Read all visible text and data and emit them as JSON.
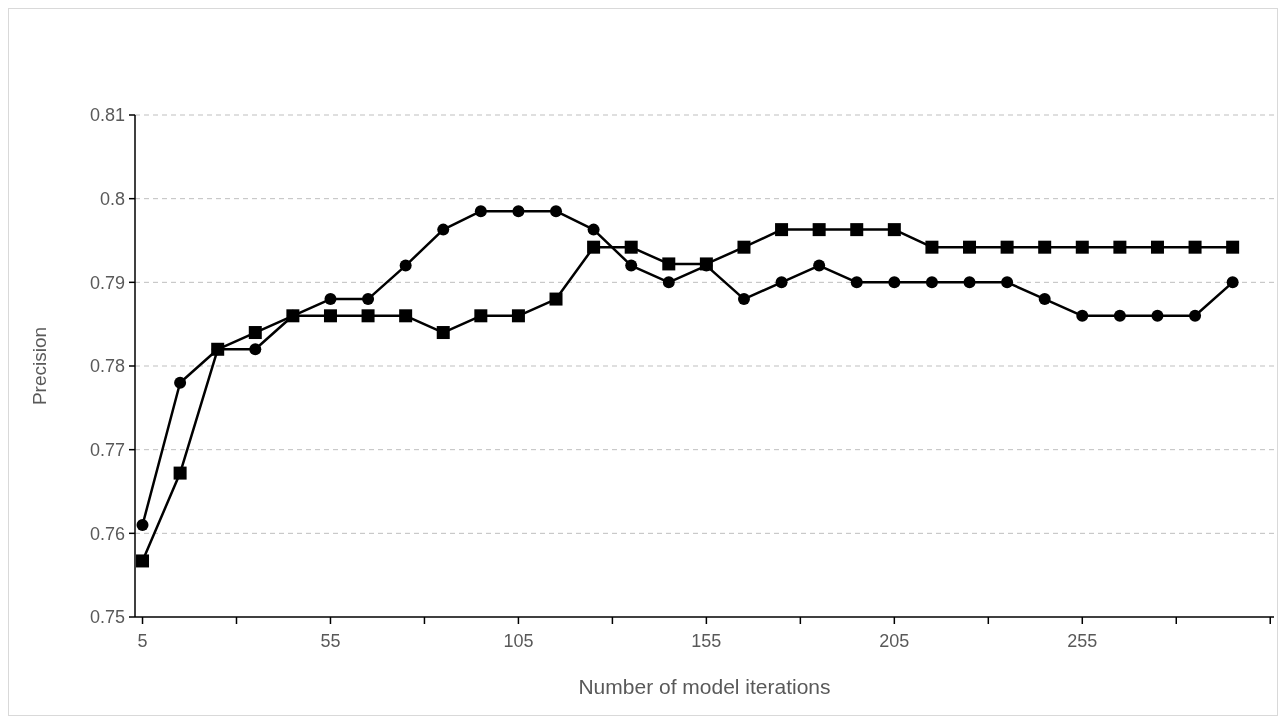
{
  "chart_data": {
    "type": "line",
    "xlabel": "Number of model iterations",
    "ylabel": "Precision",
    "x": [
      5,
      15,
      25,
      35,
      45,
      55,
      65,
      75,
      85,
      95,
      105,
      115,
      125,
      135,
      145,
      155,
      165,
      175,
      185,
      195,
      205,
      215,
      225,
      235,
      245,
      255,
      265,
      275,
      285,
      295
    ],
    "xlim": [
      3,
      306
    ],
    "xticks": [
      5,
      {
        "value": 30,
        "label": null
      },
      55,
      {
        "value": 80,
        "label": null
      },
      105,
      {
        "value": 130,
        "label": null
      },
      155,
      {
        "value": 180,
        "label": null
      },
      205,
      {
        "value": 230,
        "label": null
      },
      255,
      {
        "value": 280,
        "label": null
      },
      {
        "value": 305,
        "label": null
      }
    ],
    "ylim": [
      0.75,
      0.81
    ],
    "yticks": [
      0.75,
      0.76,
      0.77,
      0.78,
      0.79,
      {
        "value": 0.8,
        "label": "0.8"
      },
      0.81
    ],
    "grid": "y",
    "line_style": "solid",
    "series": [
      {
        "color": "#000000",
        "marker": "circle",
        "values": [
          0.761,
          0.778,
          0.782,
          0.782,
          0.786,
          0.788,
          0.788,
          0.792,
          0.7963,
          0.7985,
          0.7985,
          0.7985,
          0.7963,
          0.792,
          0.79,
          0.792,
          0.788,
          0.79,
          0.792,
          0.79,
          0.79,
          0.79,
          0.79,
          0.79,
          0.788,
          0.786,
          0.786,
          0.786,
          0.786,
          0.79
        ]
      },
      {
        "color": "#000000",
        "marker": "square",
        "values": [
          0.7567,
          0.7672,
          0.782,
          0.784,
          0.786,
          0.786,
          0.786,
          0.786,
          0.784,
          0.786,
          0.786,
          0.788,
          0.7942,
          0.7942,
          0.7922,
          0.7922,
          0.7942,
          0.7963,
          0.7963,
          0.7963,
          0.7963,
          0.7942,
          0.7942,
          0.7942,
          0.7942,
          0.7942,
          0.7942,
          0.7942,
          0.7942,
          0.7942
        ]
      }
    ]
  }
}
